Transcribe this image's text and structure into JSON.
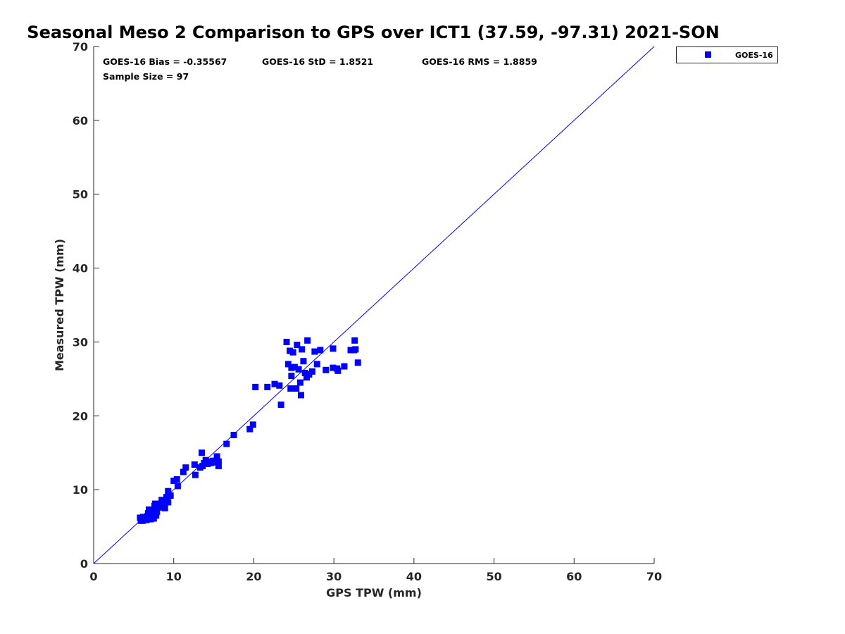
{
  "chart_data": {
    "type": "scatter",
    "title": "Seasonal Meso 2 Comparison to GPS over ICT1 (37.59, -97.31) 2021-SON",
    "xlabel": "GPS TPW (mm)",
    "ylabel": "Measured TPW (mm)",
    "xlim": [
      0,
      70
    ],
    "ylim": [
      0,
      70
    ],
    "xticks": [
      0,
      10,
      20,
      30,
      40,
      50,
      60,
      70
    ],
    "yticks": [
      0,
      10,
      20,
      30,
      40,
      50,
      60,
      70
    ],
    "grid": false,
    "legend_position": "outside-top-right",
    "stats": {
      "bias": "GOES-16 Bias = -0.35567",
      "std": "GOES-16 StD = 1.8521",
      "rms": "GOES-16 RMS = 1.8859",
      "sample": "Sample Size = 97"
    },
    "reference_line": {
      "name": "1:1 line",
      "from": [
        0,
        0
      ],
      "to": [
        70,
        70
      ],
      "color": "#0000ff"
    },
    "series": [
      {
        "name": "GOES-16",
        "color": "#0000ff",
        "marker": "square",
        "points": [
          [
            5.8,
            6.2
          ],
          [
            5.9,
            5.8
          ],
          [
            6.0,
            6.0
          ],
          [
            6.2,
            6.3
          ],
          [
            6.3,
            5.9
          ],
          [
            6.5,
            6.1
          ],
          [
            6.6,
            5.9
          ],
          [
            6.7,
            6.4
          ],
          [
            6.8,
            6.8
          ],
          [
            6.9,
            7.3
          ],
          [
            7.0,
            6.2
          ],
          [
            7.1,
            6.0
          ],
          [
            7.3,
            6.5
          ],
          [
            7.5,
            6.1
          ],
          [
            7.6,
            7.8
          ],
          [
            7.7,
            8.1
          ],
          [
            7.8,
            6.5
          ],
          [
            7.9,
            7.0
          ],
          [
            8.0,
            8.0
          ],
          [
            8.2,
            7.6
          ],
          [
            8.3,
            7.9
          ],
          [
            8.5,
            8.6
          ],
          [
            8.6,
            8.3
          ],
          [
            8.7,
            7.8
          ],
          [
            8.8,
            8.1
          ],
          [
            8.9,
            7.5
          ],
          [
            9.0,
            8.5
          ],
          [
            9.1,
            9.0
          ],
          [
            9.3,
            8.3
          ],
          [
            9.3,
            9.8
          ],
          [
            10.0,
            11.2
          ],
          [
            10.4,
            11.4
          ],
          [
            10.5,
            10.5
          ],
          [
            11.2,
            12.4
          ],
          [
            11.5,
            13.0
          ],
          [
            12.6,
            13.4
          ],
          [
            12.7,
            12.0
          ],
          [
            13.3,
            13.0
          ],
          [
            13.5,
            15.0
          ],
          [
            13.6,
            13.2
          ],
          [
            13.8,
            13.6
          ],
          [
            14.0,
            14.0
          ],
          [
            14.2,
            13.5
          ],
          [
            14.4,
            13.8
          ],
          [
            14.6,
            13.6
          ],
          [
            15.0,
            13.7
          ],
          [
            15.2,
            13.9
          ],
          [
            15.4,
            14.5
          ],
          [
            15.6,
            13.2
          ],
          [
            15.6,
            13.8
          ],
          [
            16.6,
            16.2
          ],
          [
            17.5,
            17.4
          ],
          [
            19.5,
            18.2
          ],
          [
            19.9,
            18.8
          ],
          [
            20.2,
            23.9
          ],
          [
            21.7,
            23.9
          ],
          [
            22.6,
            24.3
          ],
          [
            23.2,
            24.1
          ],
          [
            23.4,
            21.5
          ],
          [
            24.1,
            30.0
          ],
          [
            24.3,
            27.0
          ],
          [
            24.5,
            28.8
          ],
          [
            24.6,
            23.7
          ],
          [
            24.7,
            25.4
          ],
          [
            24.7,
            26.5
          ],
          [
            25.3,
            23.7
          ],
          [
            25.4,
            29.6
          ],
          [
            25.6,
            26.3
          ],
          [
            25.8,
            24.5
          ],
          [
            25.9,
            22.8
          ],
          [
            26.0,
            29.0
          ],
          [
            26.2,
            27.4
          ],
          [
            26.4,
            25.8
          ],
          [
            26.6,
            25.2
          ],
          [
            26.7,
            30.2
          ],
          [
            27.3,
            26.0
          ],
          [
            27.6,
            28.7
          ],
          [
            27.9,
            27.0
          ],
          [
            28.3,
            28.9
          ],
          [
            29.0,
            26.2
          ],
          [
            29.9,
            29.1
          ],
          [
            29.9,
            26.5
          ],
          [
            30.4,
            26.4
          ],
          [
            30.5,
            26.1
          ],
          [
            31.3,
            26.7
          ],
          [
            32.1,
            28.9
          ],
          [
            32.5,
            28.9
          ],
          [
            32.6,
            30.2
          ],
          [
            32.7,
            29.0
          ],
          [
            33.0,
            27.2
          ],
          [
            26.9,
            25.6
          ],
          [
            25.1,
            26.6
          ],
          [
            24.9,
            28.6
          ],
          [
            9.6,
            9.2
          ],
          [
            7.4,
            7.0
          ],
          [
            6.1,
            5.8
          ],
          [
            14.9,
            13.9
          ]
        ]
      }
    ]
  }
}
